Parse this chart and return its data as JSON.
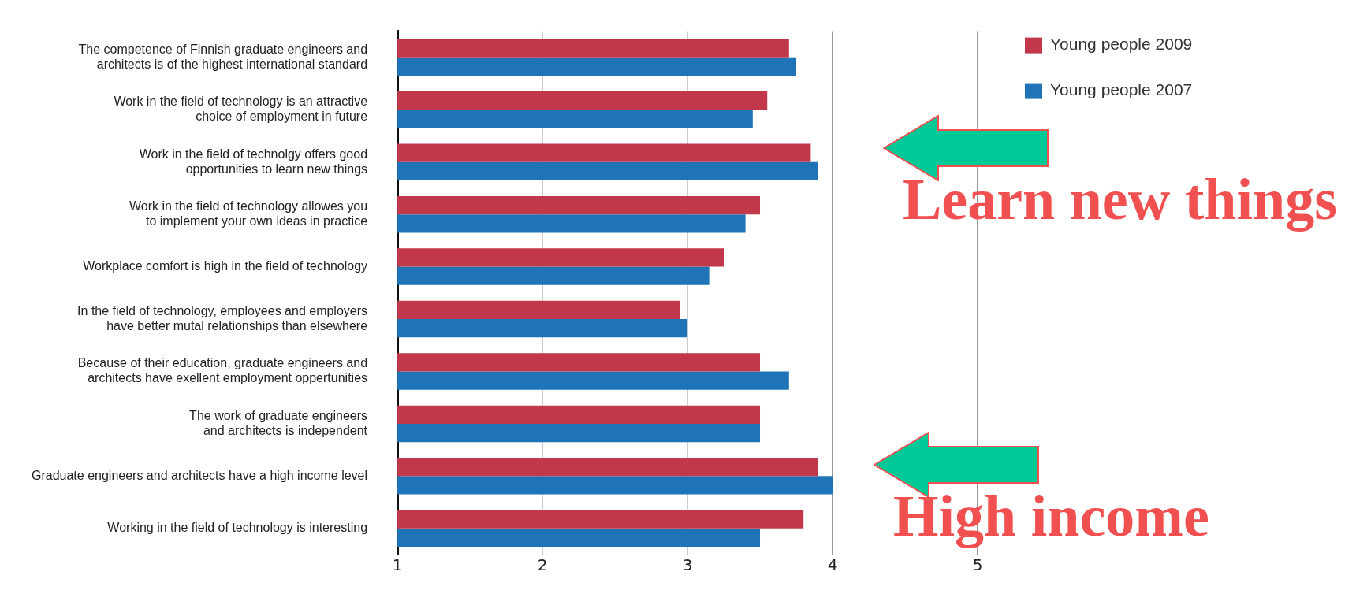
{
  "chart_data": {
    "type": "bar",
    "orientation": "horizontal",
    "categories": [
      "The competence of Finnish graduate engineers and\narchitects is of the highest international standard",
      "Work in the field of technology is an attractive\nchoice of employment in future",
      "Work in the field of technolgy offers good\nopportunities to learn new things",
      "Work in the field of technology allowes you\nto implement your own ideas in practice",
      "Workplace comfort is high in the field of technology",
      "In the field of technology, employees and employers\nhave better mutal relationships than elsewhere",
      "Because of their education, graduate engineers and\narchitects have exellent employment oppertunities",
      "The work of graduate engineers\nand architects is independent",
      "Graduate engineers and architects have a high income level",
      "Working in the field of technology is interesting"
    ],
    "series": [
      {
        "name": "Young people 2009",
        "color": "#c0384a",
        "values": [
          3.7,
          3.55,
          3.85,
          3.5,
          3.25,
          2.95,
          3.5,
          3.5,
          3.9,
          3.8
        ]
      },
      {
        "name": "Young people 2007",
        "color": "#1f74b8",
        "values": [
          3.75,
          3.45,
          3.9,
          3.4,
          3.15,
          3,
          3.7,
          3.5,
          4,
          3.5
        ]
      }
    ],
    "xlim": [
      1,
      5
    ],
    "xticks": [
      1,
      2,
      3,
      4,
      5
    ],
    "grid": "x",
    "legend": "top right",
    "annotations": [
      "Learn new things",
      "High income"
    ]
  }
}
